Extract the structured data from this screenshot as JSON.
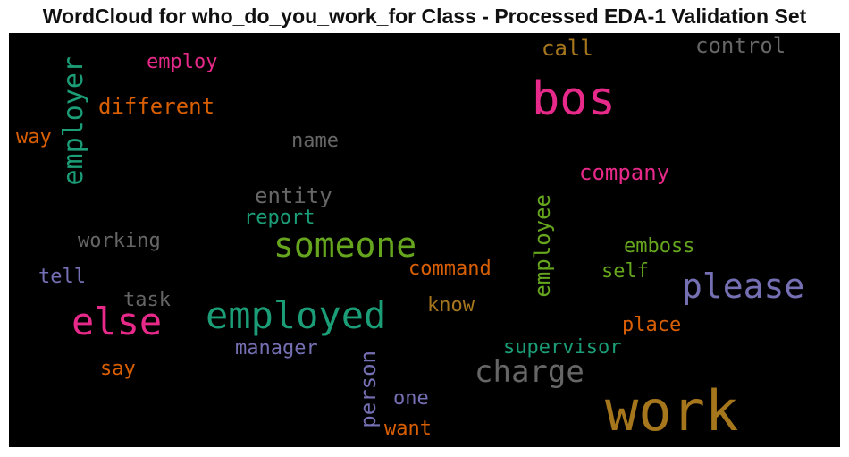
{
  "title": "WordCloud for who_do_you_work_for Class - Processed EDA-1 Validation Set",
  "chart_data": {
    "type": "wordcloud",
    "title": "WordCloud for who_do_you_work_for Class - Processed EDA-1 Validation Set",
    "background": "#000000",
    "words": [
      {
        "text": "bos",
        "color": "#e7298a"
      },
      {
        "text": "work",
        "color": "#a6761d"
      },
      {
        "text": "employed",
        "color": "#1b9e77"
      },
      {
        "text": "else",
        "color": "#e7298a"
      },
      {
        "text": "someone",
        "color": "#66a61e"
      },
      {
        "text": "please",
        "color": "#7570b3"
      },
      {
        "text": "charge",
        "color": "#666666"
      },
      {
        "text": "employer",
        "color": "#1b9e77"
      },
      {
        "text": "different",
        "color": "#d95f02"
      },
      {
        "text": "employ",
        "color": "#e7298a"
      },
      {
        "text": "call",
        "color": "#a6761d"
      },
      {
        "text": "control",
        "color": "#666666"
      },
      {
        "text": "company",
        "color": "#e7298a"
      },
      {
        "text": "name",
        "color": "#666666"
      },
      {
        "text": "way",
        "color": "#d95f02"
      },
      {
        "text": "entity",
        "color": "#666666"
      },
      {
        "text": "report",
        "color": "#1b9e77"
      },
      {
        "text": "working",
        "color": "#666666"
      },
      {
        "text": "employee",
        "color": "#66a61e"
      },
      {
        "text": "emboss",
        "color": "#66a61e"
      },
      {
        "text": "command",
        "color": "#d95f02"
      },
      {
        "text": "self",
        "color": "#66a61e"
      },
      {
        "text": "tell",
        "color": "#7570b3"
      },
      {
        "text": "task",
        "color": "#666666"
      },
      {
        "text": "know",
        "color": "#a6761d"
      },
      {
        "text": "place",
        "color": "#d95f02"
      },
      {
        "text": "manager",
        "color": "#7570b3"
      },
      {
        "text": "supervisor",
        "color": "#1b9e77"
      },
      {
        "text": "say",
        "color": "#d95f02"
      },
      {
        "text": "person",
        "color": "#7570b3"
      },
      {
        "text": "one",
        "color": "#7570b3"
      },
      {
        "text": "want",
        "color": "#d95f02"
      }
    ]
  }
}
